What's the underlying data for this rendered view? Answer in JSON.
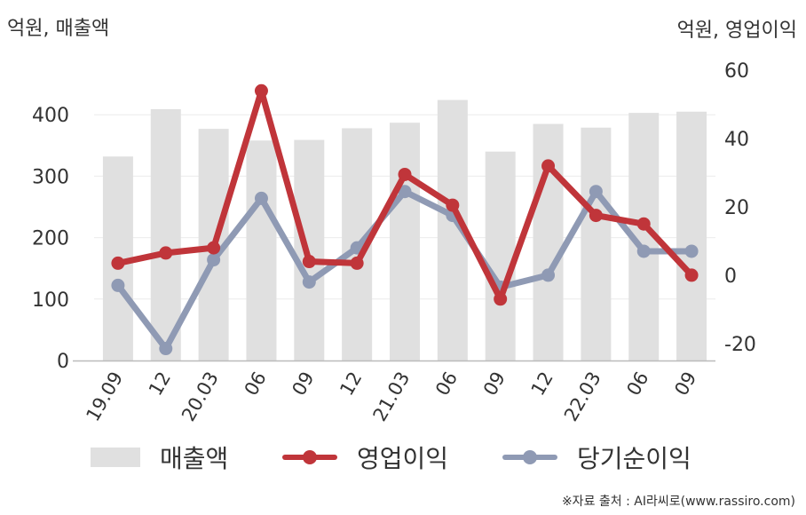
{
  "left_axis_title": "억원, 매출액",
  "right_axis_title": "억원, 영업이익",
  "source": "※자료 출처 : AI라씨로(www.rassiro.com)",
  "colors": {
    "bar": "#e0e0e0",
    "operating": "#c0353a",
    "net": "#8f9ab4",
    "grid": "#ececec",
    "axis": "#bbbbbb",
    "text": "#333333"
  },
  "chart_data": {
    "type": "bar",
    "categories": [
      "19.09",
      "12",
      "20.03",
      "06",
      "09",
      "12",
      "21.03",
      "06",
      "09",
      "12",
      "22.03",
      "06",
      "09"
    ],
    "ylim_left": [
      0,
      500
    ],
    "ylim_right": [
      -25,
      65
    ],
    "yticks_left": [
      0,
      100,
      200,
      300,
      400
    ],
    "yticks_right": [
      -20,
      0,
      20,
      40,
      60
    ],
    "series": [
      {
        "name": "매출액",
        "type": "bar",
        "axis": "left",
        "values": [
          332,
          409,
          377,
          358,
          359,
          378,
          387,
          424,
          340,
          385,
          379,
          403,
          405
        ]
      },
      {
        "name": "영업이익",
        "type": "line",
        "axis": "right",
        "values": [
          3.5,
          6.5,
          8,
          54,
          4,
          3.5,
          29.5,
          20.5,
          -7,
          32,
          17.5,
          15,
          0
        ]
      },
      {
        "name": "당기순이익",
        "type": "line",
        "axis": "right",
        "values": [
          -3,
          -21.5,
          4.5,
          22.5,
          -2,
          8,
          24.5,
          17.5,
          -3.5,
          0,
          24.5,
          7,
          7
        ]
      }
    ],
    "legend_position": "bottom",
    "grid": true
  }
}
